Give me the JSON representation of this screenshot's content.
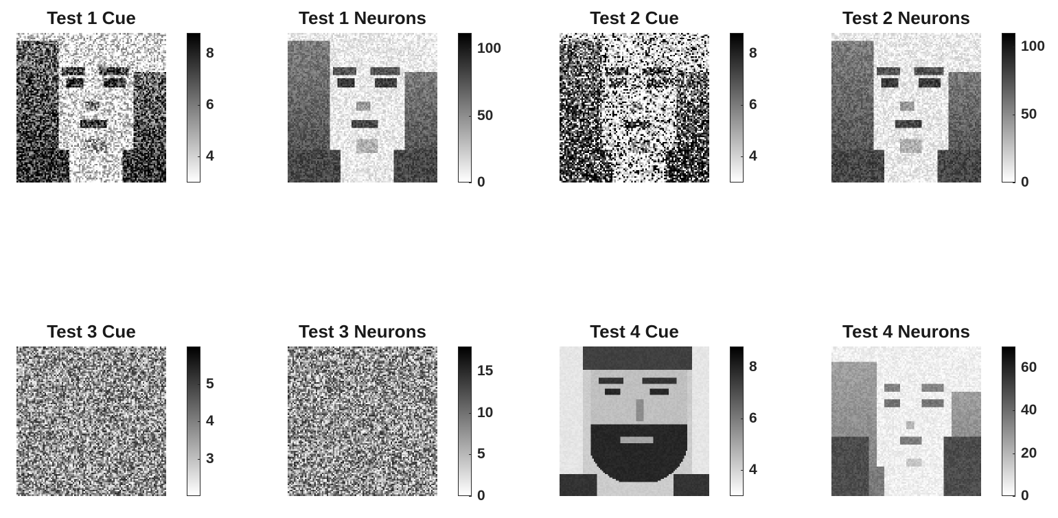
{
  "chart_data": [
    {
      "type": "heatmap",
      "title": "Test 1 Cue",
      "image": "noisy-face-female",
      "colorbar": {
        "ticks": [
          4,
          6,
          8
        ],
        "clim": [
          3.0,
          8.8
        ]
      },
      "colormap": "gray-inverted"
    },
    {
      "type": "heatmap",
      "title": "Test 1 Neurons",
      "image": "recalled-face-female",
      "colorbar": {
        "ticks": [
          0,
          50,
          100
        ],
        "clim": [
          0,
          112
        ]
      },
      "colormap": "gray-inverted"
    },
    {
      "type": "heatmap",
      "title": "Test 2 Cue",
      "image": "heavily-noisy-face-female",
      "colorbar": {
        "ticks": [
          4,
          6,
          8
        ],
        "clim": [
          3.0,
          8.8
        ]
      },
      "colormap": "gray-inverted"
    },
    {
      "type": "heatmap",
      "title": "Test 2 Neurons",
      "image": "recalled-face-female",
      "colorbar": {
        "ticks": [
          0,
          50,
          100
        ],
        "clim": [
          0,
          110
        ]
      },
      "colormap": "gray-inverted"
    },
    {
      "type": "heatmap",
      "title": "Test 3 Cue",
      "image": "random-noise",
      "colorbar": {
        "ticks": [
          3,
          4,
          5
        ],
        "clim": [
          2.0,
          6.0
        ]
      },
      "colormap": "gray-inverted"
    },
    {
      "type": "heatmap",
      "title": "Test 3 Neurons",
      "image": "random-noise",
      "colorbar": {
        "ticks": [
          0,
          5,
          10,
          15
        ],
        "clim": [
          0,
          18
        ]
      },
      "colormap": "gray-inverted"
    },
    {
      "type": "heatmap",
      "title": "Test 4 Cue",
      "image": "photo-face-male-bearded",
      "colorbar": {
        "ticks": [
          4,
          6,
          8
        ],
        "clim": [
          3.0,
          8.8
        ]
      },
      "colormap": "gray-inverted"
    },
    {
      "type": "heatmap",
      "title": "Test 4 Neurons",
      "image": "recalled-face-blocky",
      "colorbar": {
        "ticks": [
          0,
          20,
          40,
          60
        ],
        "clim": [
          0,
          70
        ]
      },
      "colormap": "gray-inverted"
    }
  ]
}
